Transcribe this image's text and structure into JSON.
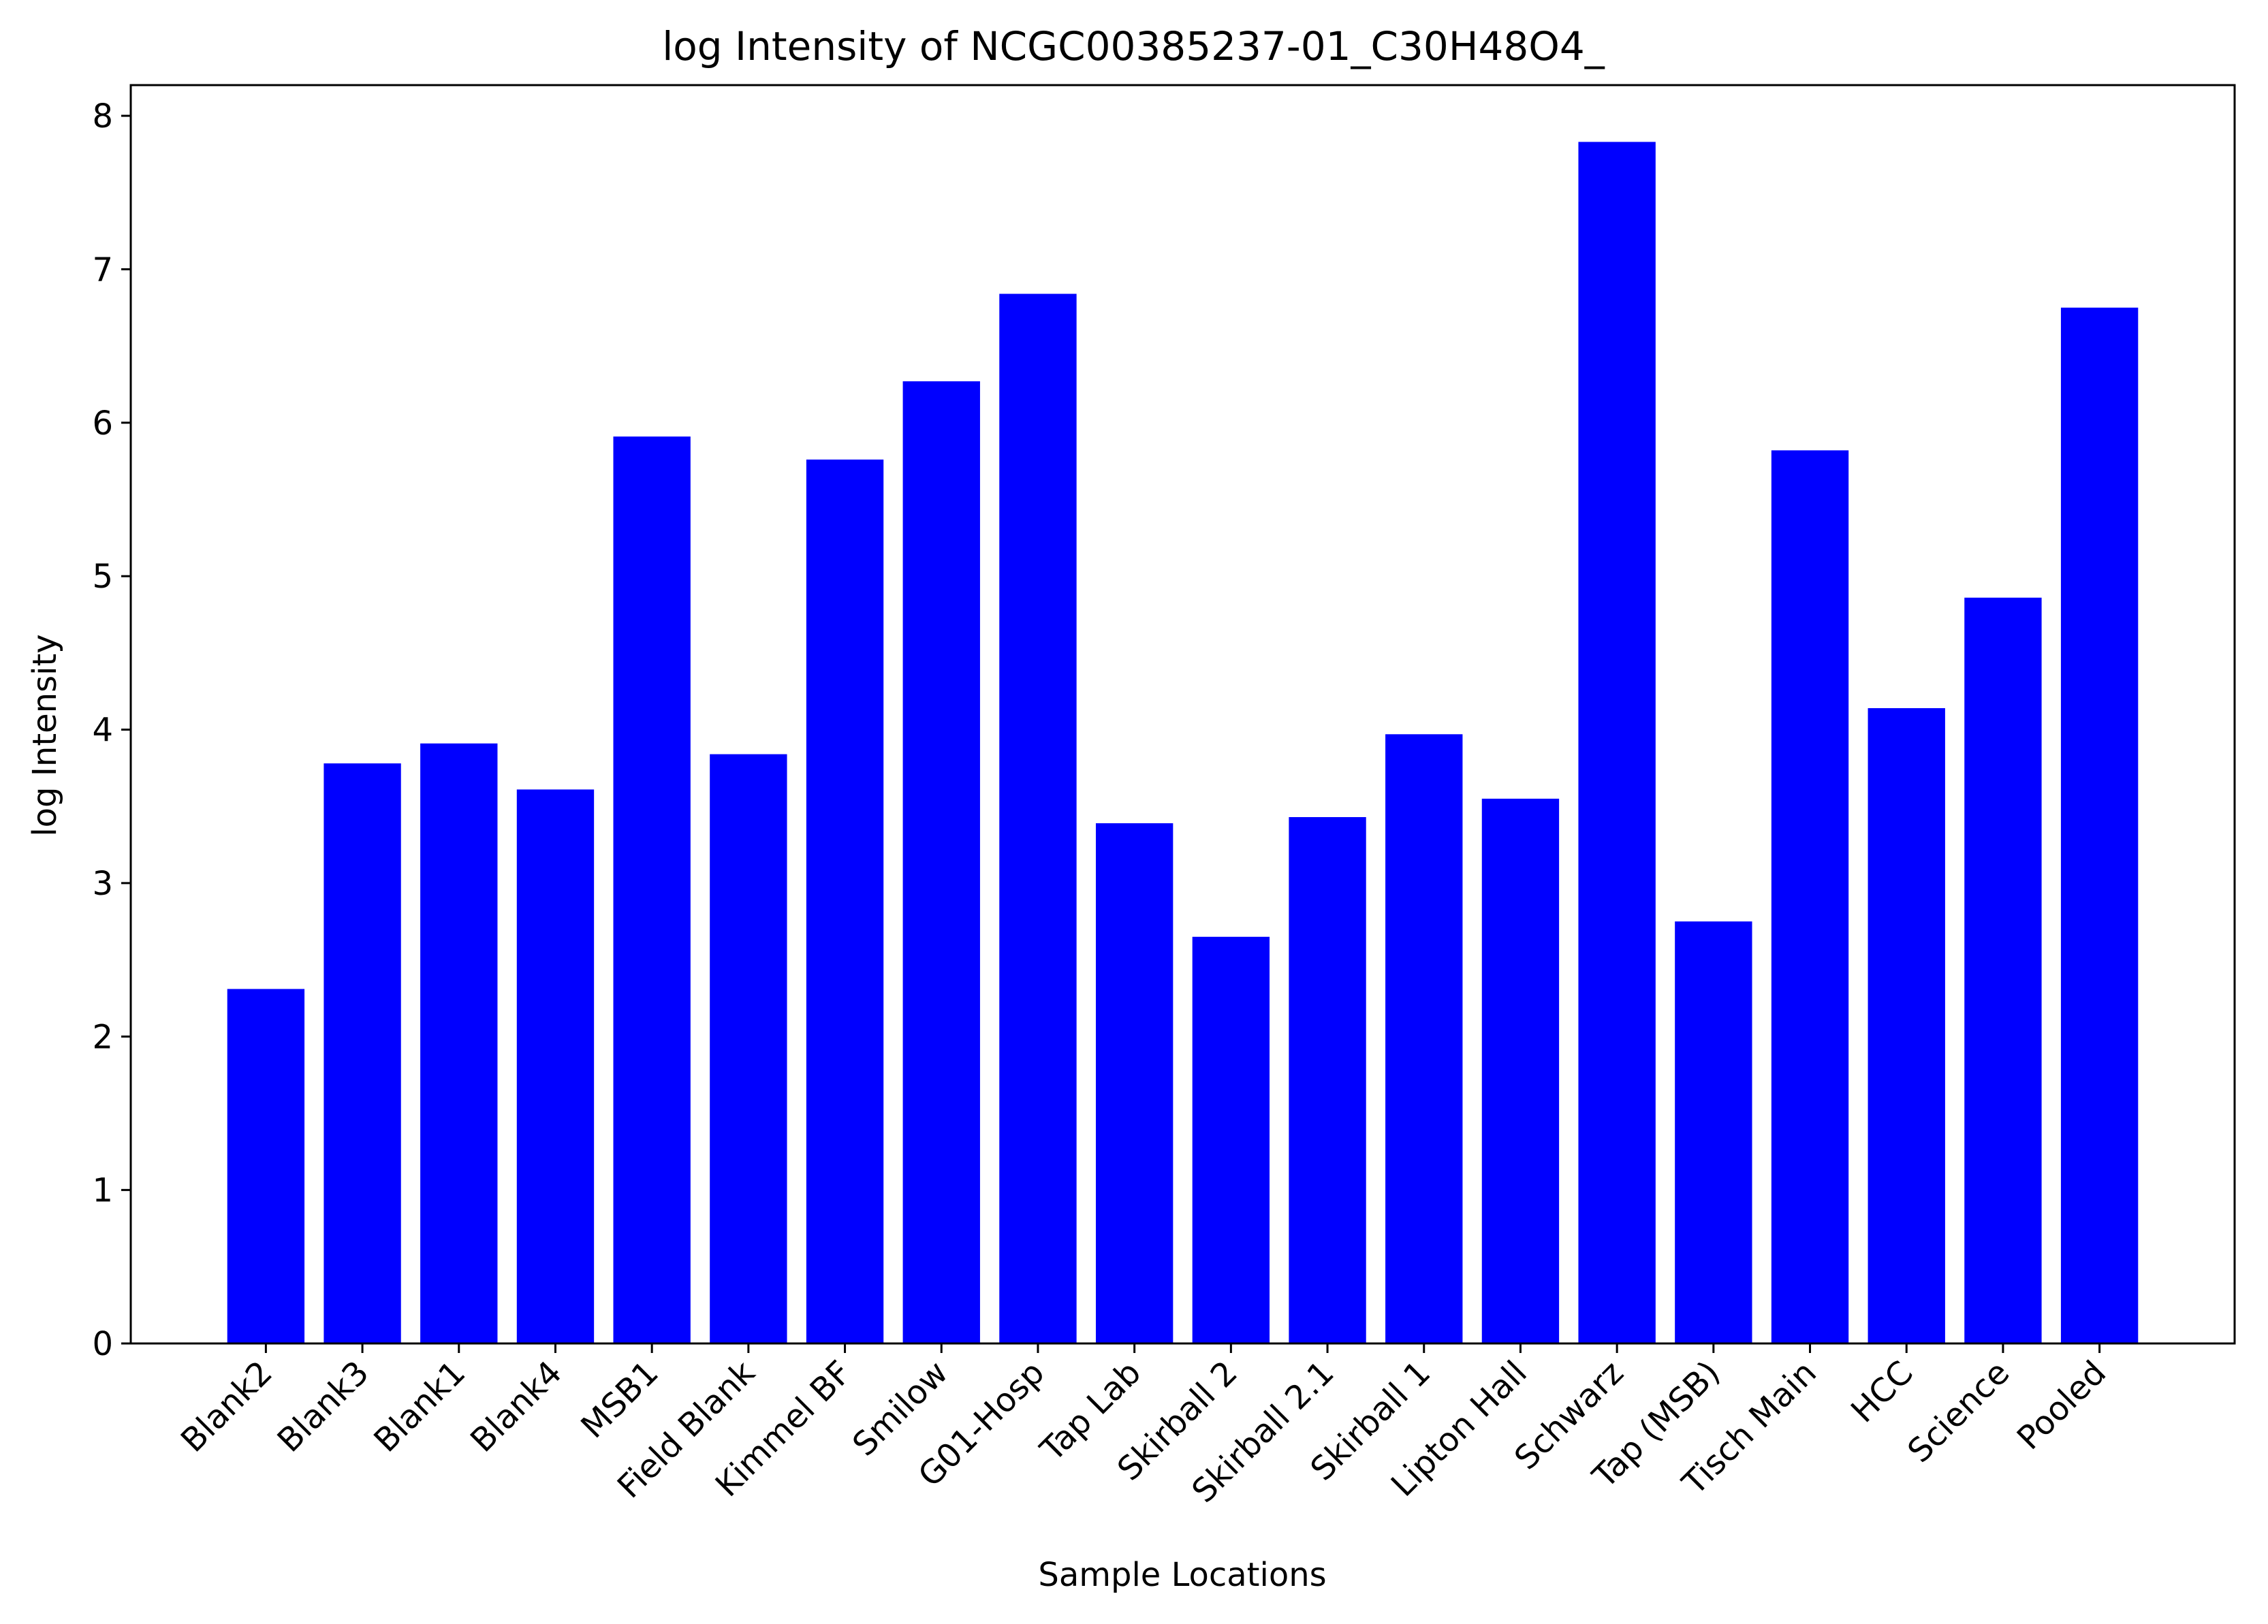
{
  "chart_data": {
    "type": "bar",
    "title": "log Intensity of NCGC00385237-01_C30H48O4_",
    "xlabel": "Sample Locations",
    "ylabel": "log Intensity",
    "ylim": [
      0,
      8.2
    ],
    "yticks": [
      "0",
      "1",
      "2",
      "3",
      "4",
      "5",
      "6",
      "7",
      "8"
    ],
    "grid": false,
    "bar_color": "#0000ff",
    "categories": [
      "Blank2",
      "Blank3",
      "Blank1",
      "Blank4",
      "MSB1",
      "Field Blank",
      "Kimmel BF",
      "Smilow",
      "G01-Hosp",
      "Tap Lab",
      "Skirball 2",
      "Skirball 2.1",
      "Skirball 1",
      "Lipton Hall",
      "Schwarz",
      "Tap (MSB)",
      "Tisch Main",
      "HCC",
      "Science",
      "Pooled"
    ],
    "values": [
      2.31,
      3.78,
      3.91,
      3.61,
      5.91,
      3.84,
      5.76,
      6.27,
      6.84,
      3.39,
      2.65,
      3.43,
      3.97,
      3.55,
      7.83,
      2.75,
      5.82,
      4.14,
      4.86,
      6.75
    ]
  }
}
